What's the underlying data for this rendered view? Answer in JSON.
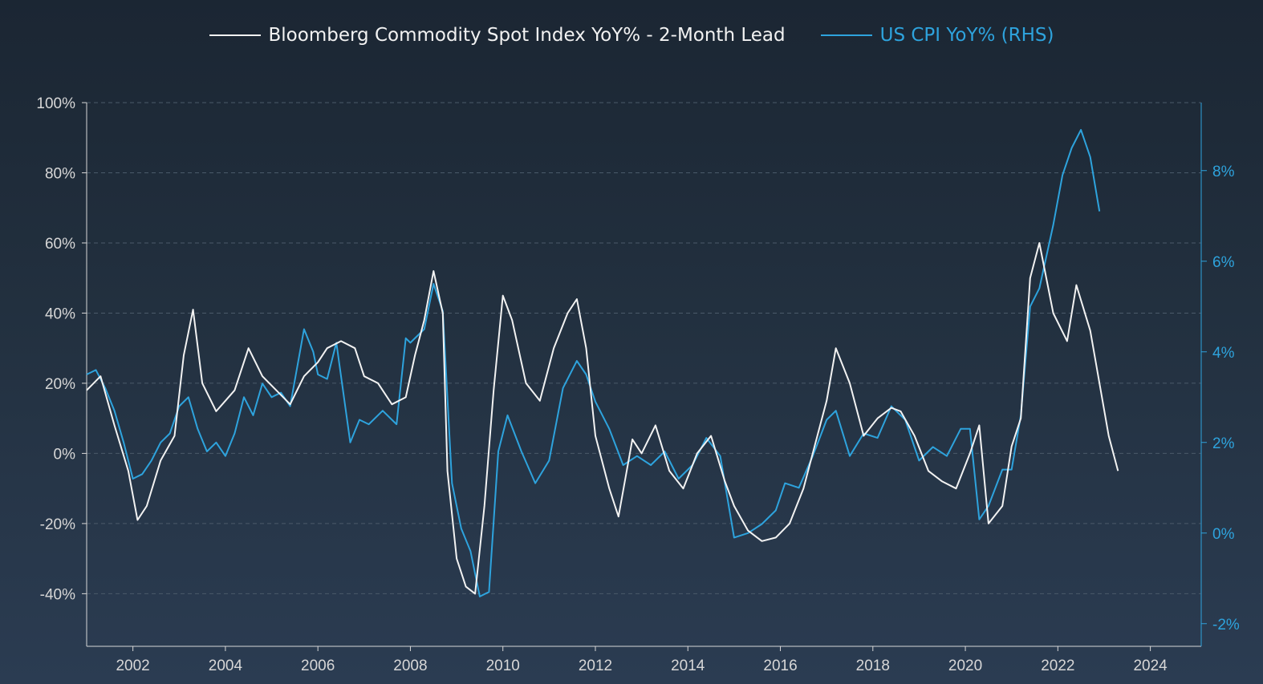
{
  "legend": {
    "series1_label": "Bloomberg Commodity Spot Index YoY% - 2-Month Lead",
    "series2_label": "US CPI YoY% (RHS)"
  },
  "colors": {
    "series1": "#f2f2f2",
    "series2": "#2ea3dd",
    "axis_left": "#d7d7d7",
    "axis_right": "#2ea3dd",
    "grid": "#4b5a6a"
  },
  "chart_data": {
    "type": "line",
    "title": "",
    "xlabel": "",
    "ylabel": "",
    "xlim": [
      2001.0,
      2025.1
    ],
    "ylim_left": [
      -55,
      100
    ],
    "ylim_right": [
      -2.5,
      9.5
    ],
    "x_ticks": [
      2002,
      2004,
      2006,
      2008,
      2010,
      2012,
      2014,
      2016,
      2018,
      2020,
      2022,
      2024
    ],
    "x_tick_labels": [
      "2002",
      "2004",
      "2006",
      "2008",
      "2010",
      "2012",
      "2014",
      "2016",
      "2018",
      "2020",
      "2022",
      "2024"
    ],
    "y_left_ticks": [
      100,
      80,
      60,
      40,
      20,
      0,
      -20,
      -40
    ],
    "y_left_tick_labels": [
      "100%",
      "80%",
      "60%",
      "40%",
      "20%",
      "0%",
      "-20%",
      "-40%"
    ],
    "y_right_ticks": [
      8,
      6,
      4,
      2,
      0,
      -2
    ],
    "y_right_tick_labels": [
      "8%",
      "6%",
      "4%",
      "2%",
      "0%",
      "-2%"
    ],
    "grid": true,
    "legend_position": "top-center",
    "series": [
      {
        "name": "Bloomberg Commodity Spot Index YoY% - 2-Month Lead",
        "axis": "left",
        "x": [
          2001.0,
          2001.3,
          2001.6,
          2001.9,
          2002.1,
          2002.3,
          2002.6,
          2002.9,
          2003.1,
          2003.3,
          2003.5,
          2003.8,
          2004.0,
          2004.2,
          2004.5,
          2004.8,
          2005.1,
          2005.4,
          2005.7,
          2006.0,
          2006.2,
          2006.5,
          2006.8,
          2007.0,
          2007.3,
          2007.6,
          2007.9,
          2008.1,
          2008.3,
          2008.5,
          2008.7,
          2008.8,
          2009.0,
          2009.2,
          2009.4,
          2009.6,
          2009.8,
          2010.0,
          2010.2,
          2010.5,
          2010.8,
          2011.1,
          2011.4,
          2011.6,
          2011.8,
          2012.0,
          2012.3,
          2012.5,
          2012.8,
          2013.0,
          2013.3,
          2013.6,
          2013.9,
          2014.2,
          2014.5,
          2014.8,
          2015.0,
          2015.3,
          2015.6,
          2015.9,
          2016.2,
          2016.5,
          2016.8,
          2017.0,
          2017.2,
          2017.5,
          2017.8,
          2018.1,
          2018.4,
          2018.6,
          2018.9,
          2019.2,
          2019.5,
          2019.8,
          2020.1,
          2020.3,
          2020.5,
          2020.8,
          2021.0,
          2021.2,
          2021.4,
          2021.6,
          2021.9,
          2022.2,
          2022.4,
          2022.7,
          2022.9,
          2023.1,
          2023.3
        ],
        "values": [
          18,
          22,
          8,
          -5,
          -19,
          -15,
          -2,
          5,
          28,
          41,
          20,
          12,
          15,
          18,
          30,
          22,
          18,
          14,
          22,
          26,
          30,
          32,
          30,
          22,
          20,
          14,
          16,
          28,
          38,
          52,
          40,
          -5,
          -30,
          -38,
          -40,
          -15,
          18,
          45,
          38,
          20,
          15,
          30,
          40,
          44,
          30,
          5,
          -10,
          -18,
          4,
          0,
          8,
          -5,
          -10,
          0,
          5,
          -8,
          -15,
          -22,
          -25,
          -24,
          -20,
          -10,
          5,
          15,
          30,
          20,
          5,
          10,
          13,
          12,
          5,
          -5,
          -8,
          -10,
          0,
          8,
          -20,
          -15,
          2,
          10,
          50,
          60,
          40,
          32,
          48,
          35,
          20,
          5,
          -5
        ]
      },
      {
        "name": "US CPI YoY% (RHS)",
        "axis": "right",
        "x": [
          2001.0,
          2001.2,
          2001.4,
          2001.6,
          2001.8,
          2002.0,
          2002.2,
          2002.4,
          2002.6,
          2002.8,
          2003.0,
          2003.2,
          2003.4,
          2003.6,
          2003.8,
          2004.0,
          2004.2,
          2004.4,
          2004.6,
          2004.8,
          2005.0,
          2005.2,
          2005.4,
          2005.7,
          2005.9,
          2006.0,
          2006.2,
          2006.4,
          2006.7,
          2006.9,
          2007.1,
          2007.4,
          2007.7,
          2007.9,
          2008.0,
          2008.3,
          2008.5,
          2008.7,
          2008.9,
          2009.1,
          2009.3,
          2009.5,
          2009.7,
          2009.9,
          2010.1,
          2010.4,
          2010.7,
          2011.0,
          2011.3,
          2011.6,
          2011.8,
          2012.0,
          2012.3,
          2012.6,
          2012.9,
          2013.2,
          2013.5,
          2013.8,
          2014.1,
          2014.4,
          2014.7,
          2015.0,
          2015.3,
          2015.6,
          2015.9,
          2016.1,
          2016.4,
          2016.7,
          2017.0,
          2017.2,
          2017.5,
          2017.8,
          2018.1,
          2018.4,
          2018.7,
          2019.0,
          2019.3,
          2019.6,
          2019.9,
          2020.1,
          2020.3,
          2020.5,
          2020.8,
          2021.0,
          2021.2,
          2021.4,
          2021.6,
          2021.9,
          2022.1,
          2022.3,
          2022.5,
          2022.7,
          2022.9
        ],
        "values": [
          3.5,
          3.6,
          3.2,
          2.7,
          2.0,
          1.2,
          1.3,
          1.6,
          2.0,
          2.2,
          2.8,
          3.0,
          2.3,
          1.8,
          2.0,
          1.7,
          2.2,
          3.0,
          2.6,
          3.3,
          3.0,
          3.1,
          2.8,
          4.5,
          4.0,
          3.5,
          3.4,
          4.2,
          2.0,
          2.5,
          2.4,
          2.7,
          2.4,
          4.3,
          4.2,
          4.5,
          5.5,
          4.9,
          1.1,
          0.1,
          -0.4,
          -1.4,
          -1.3,
          1.8,
          2.6,
          1.8,
          1.1,
          1.6,
          3.2,
          3.8,
          3.5,
          2.9,
          2.3,
          1.5,
          1.7,
          1.5,
          1.8,
          1.2,
          1.5,
          2.1,
          1.7,
          -0.1,
          0.0,
          0.2,
          0.5,
          1.1,
          1.0,
          1.7,
          2.5,
          2.7,
          1.7,
          2.2,
          2.1,
          2.8,
          2.5,
          1.6,
          1.9,
          1.7,
          2.3,
          2.3,
          0.3,
          0.6,
          1.4,
          1.4,
          2.6,
          5.0,
          5.4,
          6.8,
          7.9,
          8.5,
          8.9,
          8.3,
          7.1
        ]
      }
    ]
  }
}
